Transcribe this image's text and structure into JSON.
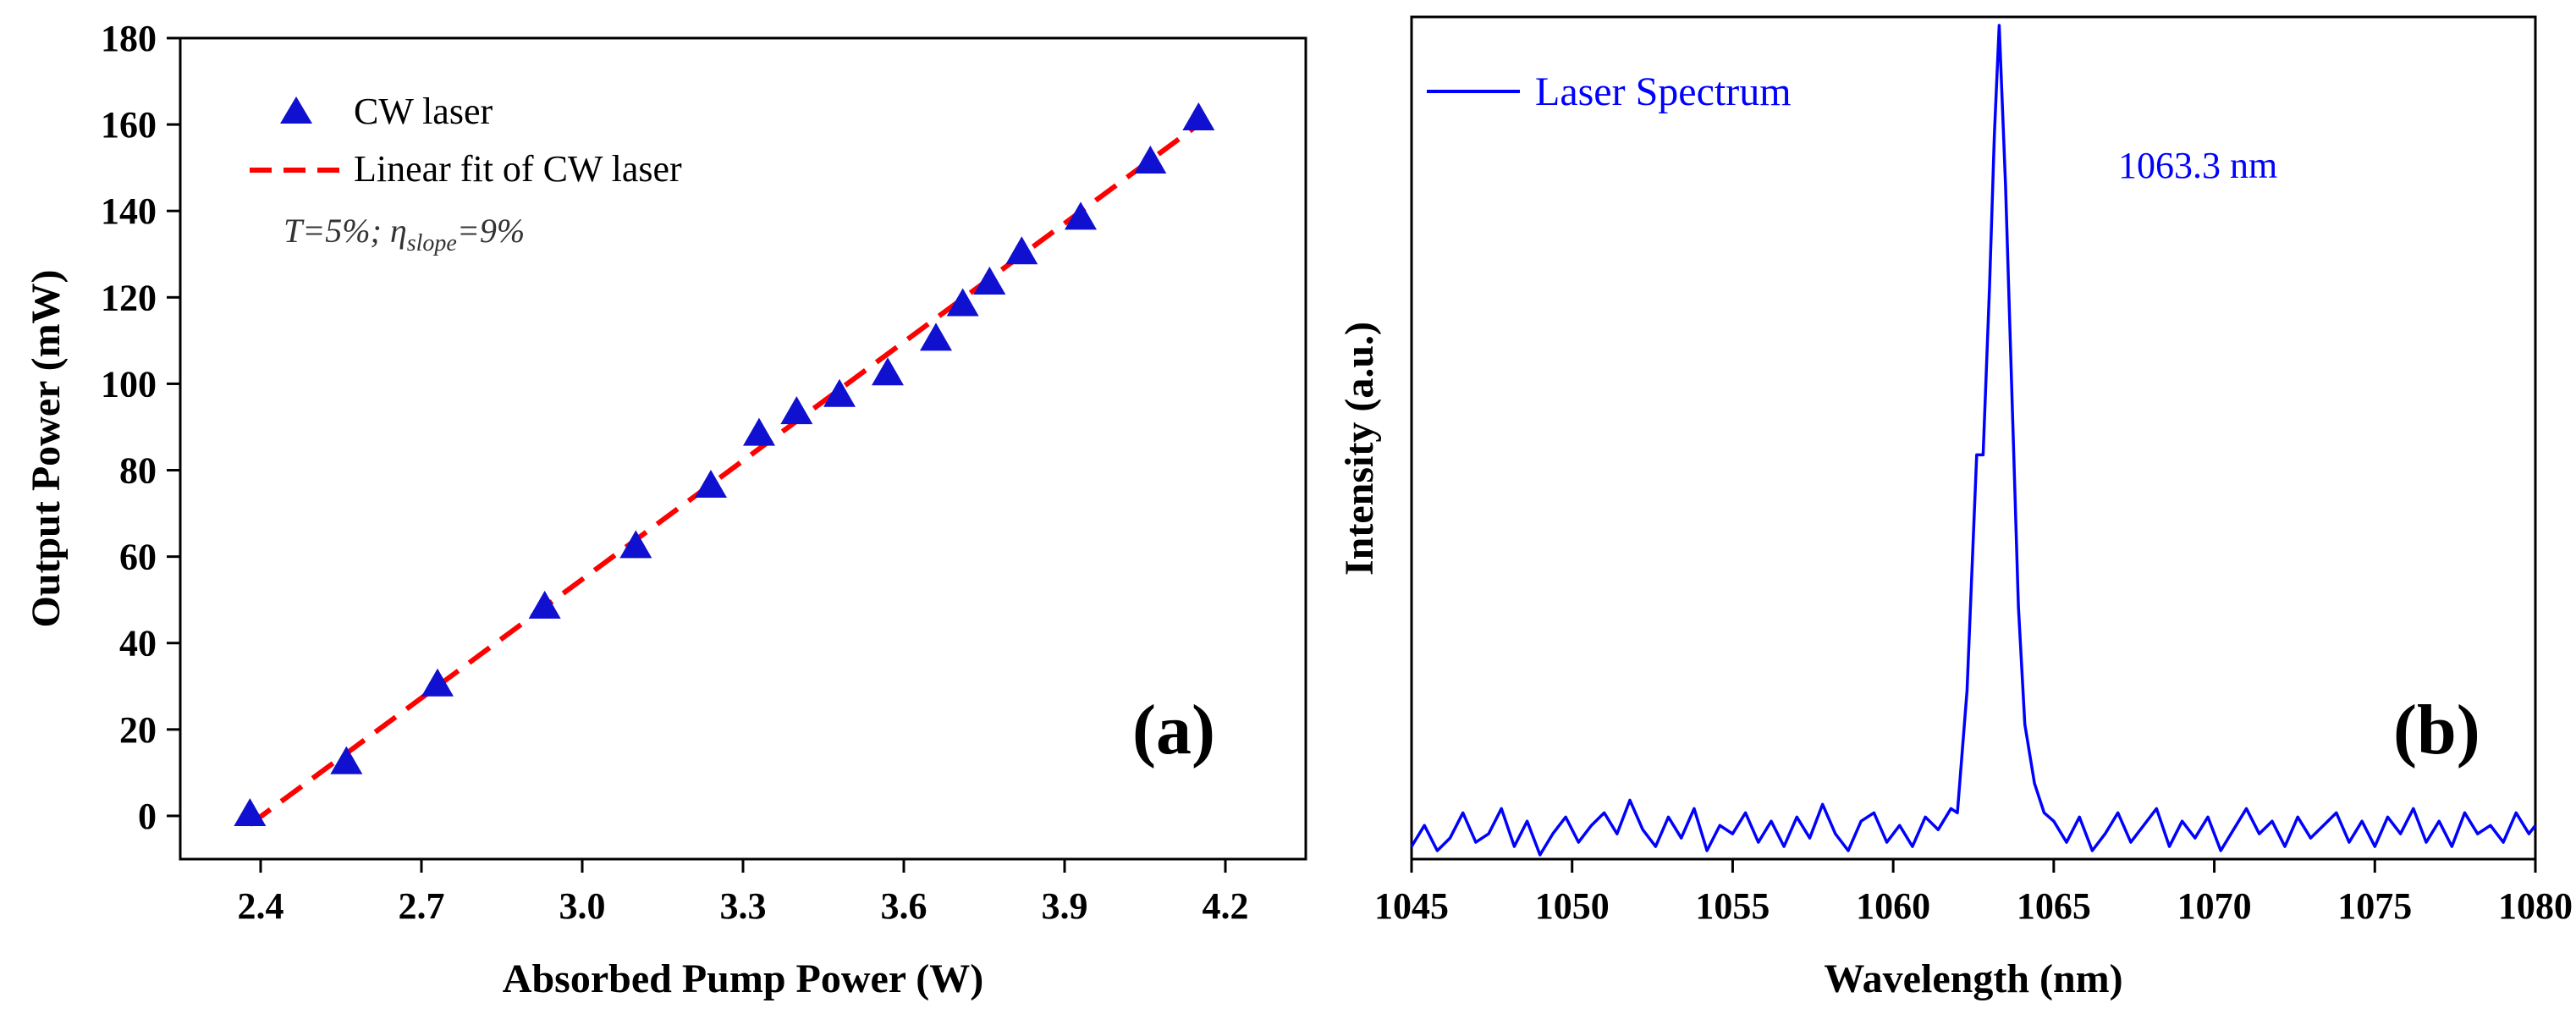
{
  "chart_data": [
    {
      "type": "scatter",
      "panel": "(a)",
      "xlabel": "Absorbed Pump Power (W)",
      "ylabel": "Output Power (mW)",
      "xlim": [
        2.25,
        4.35
      ],
      "ylim": [
        -10,
        180
      ],
      "xticks": [
        "2.4",
        "2.7",
        "3.0",
        "3.3",
        "3.6",
        "3.9",
        "4.2"
      ],
      "yticks": [
        "0",
        "20",
        "40",
        "60",
        "80",
        "100",
        "120",
        "140",
        "160",
        "180"
      ],
      "grid": false,
      "legend_position": "top-left",
      "annotation": {
        "t": "T=5%; ",
        "eta": "η",
        "sub": "slope",
        "rest": "=9%"
      },
      "series": [
        {
          "name": "CW laser",
          "marker": "triangle",
          "color": "#0000cc",
          "x": [
            2.38,
            2.56,
            2.73,
            2.93,
            3.1,
            3.24,
            3.33,
            3.4,
            3.48,
            3.57,
            3.66,
            3.71,
            3.76,
            3.82,
            3.93,
            4.06,
            4.15
          ],
          "y": [
            0,
            12,
            30,
            48,
            62,
            76,
            88,
            93,
            97,
            102,
            110,
            118,
            123,
            130,
            138,
            151,
            161
          ]
        },
        {
          "name": "Linear fit of CW laser",
          "style": "dashed",
          "color": "#ff0000",
          "x": [
            2.38,
            4.15
          ],
          "y": [
            -2,
            160
          ]
        }
      ]
    },
    {
      "type": "line",
      "panel": "(b)",
      "xlabel": "Wavelength (nm)",
      "ylabel": "Intensity (a.u.)",
      "xlim": [
        1045,
        1080
      ],
      "ylim": [
        0,
        1
      ],
      "xticks": [
        "1045",
        "1050",
        "1055",
        "1060",
        "1065",
        "1070",
        "1075",
        "1080"
      ],
      "grid": false,
      "legend_position": "top-left",
      "peak_annotation": "1063.3 nm",
      "series": [
        {
          "name": "Laser Spectrum",
          "color": "#0000ff",
          "noise_x": [
            1045.0,
            1045.4,
            1045.8,
            1046.2,
            1046.6,
            1047.0,
            1047.4,
            1047.8,
            1048.2,
            1048.6,
            1049.0,
            1049.4,
            1049.8,
            1050.2,
            1050.6,
            1051.0,
            1051.4,
            1051.8,
            1052.2,
            1052.6,
            1053.0,
            1053.4,
            1053.8,
            1054.2,
            1054.6,
            1055.0,
            1055.4,
            1055.8,
            1056.2,
            1056.6,
            1057.0,
            1057.4,
            1057.8,
            1058.2,
            1058.6,
            1059.0,
            1059.4,
            1059.8,
            1060.2,
            1060.6,
            1061.0,
            1061.4,
            1061.8,
            1065.0,
            1065.4,
            1065.8,
            1066.2,
            1066.6,
            1067.0,
            1067.4,
            1067.8,
            1068.2,
            1068.6,
            1069.0,
            1069.4,
            1069.8,
            1070.2,
            1070.6,
            1071.0,
            1071.4,
            1071.8,
            1072.2,
            1072.6,
            1073.0,
            1073.4,
            1073.8,
            1074.2,
            1074.6,
            1075.0,
            1075.4,
            1075.8,
            1076.2,
            1076.6,
            1077.0,
            1077.4,
            1077.8,
            1078.2,
            1078.6,
            1079.0,
            1079.4,
            1079.8,
            1080.0
          ],
          "noise_y": [
            0.015,
            0.04,
            0.01,
            0.025,
            0.055,
            0.02,
            0.03,
            0.06,
            0.015,
            0.045,
            0.005,
            0.03,
            0.05,
            0.02,
            0.04,
            0.055,
            0.03,
            0.07,
            0.035,
            0.015,
            0.05,
            0.025,
            0.06,
            0.01,
            0.04,
            0.03,
            0.055,
            0.02,
            0.045,
            0.015,
            0.05,
            0.025,
            0.065,
            0.03,
            0.01,
            0.045,
            0.055,
            0.02,
            0.04,
            0.015,
            0.05,
            0.035,
            0.06,
            0.045,
            0.02,
            0.05,
            0.01,
            0.03,
            0.055,
            0.02,
            0.04,
            0.06,
            0.015,
            0.045,
            0.025,
            0.05,
            0.01,
            0.035,
            0.06,
            0.03,
            0.045,
            0.015,
            0.05,
            0.025,
            0.04,
            0.055,
            0.02,
            0.045,
            0.015,
            0.05,
            0.03,
            0.06,
            0.02,
            0.045,
            0.015,
            0.055,
            0.03,
            0.04,
            0.02,
            0.055,
            0.03,
            0.04
          ],
          "peak_x": [
            1062.0,
            1062.3,
            1062.6,
            1062.8,
            1063.0,
            1063.15,
            1063.3,
            1063.5,
            1063.7,
            1063.9,
            1064.1,
            1064.4,
            1064.7
          ],
          "peak_y": [
            0.055,
            0.2,
            0.48,
            0.48,
            0.68,
            0.86,
            0.99,
            0.8,
            0.55,
            0.3,
            0.16,
            0.09,
            0.055
          ]
        }
      ]
    }
  ]
}
